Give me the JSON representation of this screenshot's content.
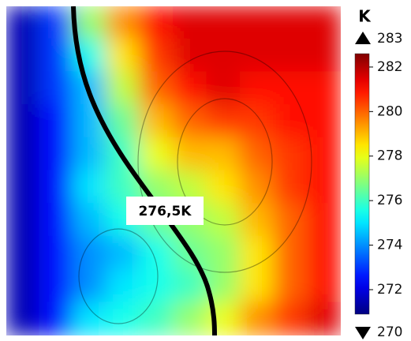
{
  "chart_data": {
    "type": "heatmap",
    "colormap": "jet",
    "colorbar_title": "K",
    "clim": [
      270.9,
      282.6
    ],
    "cticks": [
      272,
      274,
      276,
      278,
      280,
      282
    ],
    "cmax_label": "283",
    "cmin_label": "270",
    "annotation": "276,5K",
    "values": [
      [
        271.5,
        273,
        277,
        279.5,
        281,
        281.5,
        281.5,
        281.5,
        281.5,
        281.5
      ],
      [
        271.5,
        273,
        275.5,
        278.5,
        280.5,
        281.5,
        281.5,
        281.5,
        281.5,
        281.5
      ],
      [
        271.5,
        273,
        274.5,
        277.5,
        280,
        281,
        281.5,
        281,
        281,
        281
      ],
      [
        271.5,
        272.5,
        274.5,
        276.5,
        279,
        280,
        280.5,
        280.5,
        281,
        281
      ],
      [
        271.5,
        272.5,
        274.5,
        276,
        278,
        279,
        279,
        280,
        280.5,
        281
      ],
      [
        271.5,
        272.5,
        275,
        276,
        277,
        277.5,
        278.5,
        279.5,
        280.5,
        281
      ],
      [
        271.5,
        272.5,
        274.5,
        275.5,
        276.5,
        277,
        277.5,
        279,
        280,
        281
      ],
      [
        271.5,
        272.5,
        274,
        274.5,
        275.5,
        276.5,
        277,
        278.5,
        280,
        281
      ],
      [
        271.5,
        272.5,
        274,
        275,
        275.5,
        276,
        277,
        278.5,
        280,
        281
      ],
      [
        271.5,
        272.5,
        275,
        275.5,
        276,
        277,
        278,
        279.5,
        280.5,
        281.5
      ]
    ]
  }
}
